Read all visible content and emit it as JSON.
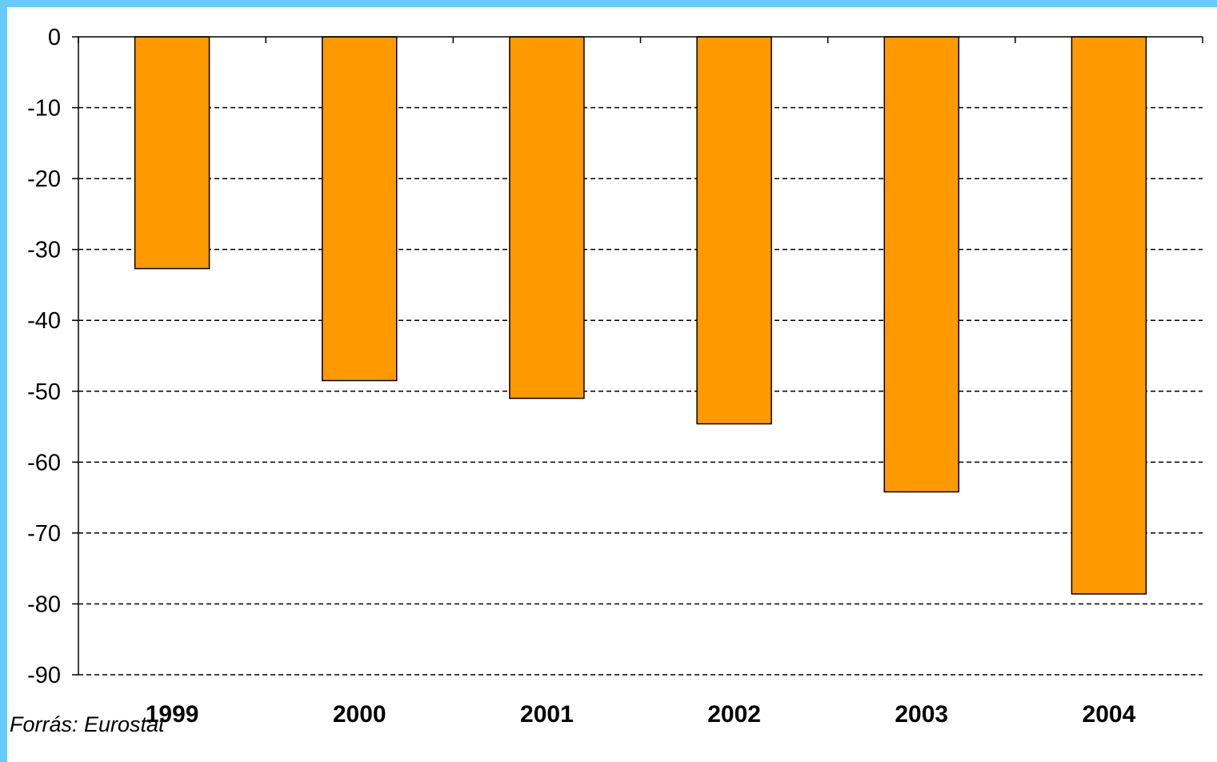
{
  "colors": {
    "frame": "#66ccff",
    "bar_fill": "#ff9900",
    "bar_stroke": "#000000",
    "grid": "#000000"
  },
  "source_note": "Forrás: Eurostat",
  "chart_data": {
    "type": "bar",
    "title": "",
    "xlabel": "",
    "ylabel": "",
    "categories": [
      "1999",
      "2000",
      "2001",
      "2002",
      "2003",
      "2004"
    ],
    "values": [
      -32.7,
      -48.5,
      -51.0,
      -54.6,
      -64.2,
      -78.6
    ],
    "ylim": [
      -90,
      0
    ],
    "yticks": [
      0,
      -10,
      -20,
      -30,
      -40,
      -50,
      -60,
      -70,
      -80,
      -90
    ],
    "grid": "horizontal dashed",
    "legend": "none"
  }
}
